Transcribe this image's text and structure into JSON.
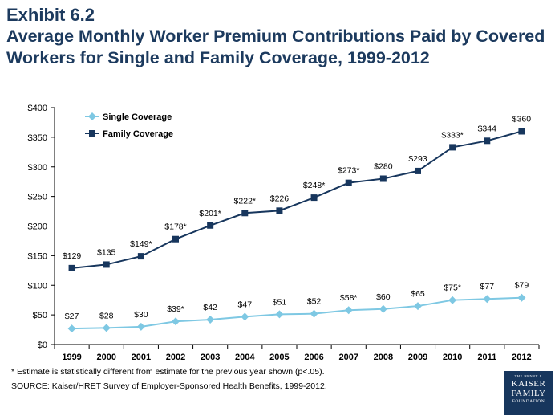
{
  "header": {
    "exhibit": "Exhibit 6.2",
    "title_line1": "Average Monthly Worker Premium Contributions Paid by Covered",
    "title_line2": "Workers for Single and Family Coverage, 1999-2012"
  },
  "footer": {
    "note": "* Estimate is statistically different from estimate for the previous year shown (p<.05).",
    "source": "SOURCE:  Kaiser/HRET Survey of Employer-Sponsored Health Benefits, 1999-2012."
  },
  "logo": {
    "line1": "THE HENRY J.",
    "line2": "KAISER",
    "line3": "FAMILY",
    "line4": "FOUNDATION"
  },
  "chart_data": {
    "type": "line",
    "categories": [
      "1999",
      "2000",
      "2001",
      "2002",
      "2003",
      "2004",
      "2005",
      "2006",
      "2007",
      "2008",
      "2009",
      "2010",
      "2011",
      "2012"
    ],
    "ylim": [
      0,
      400
    ],
    "yticks": [
      0,
      50,
      100,
      150,
      200,
      250,
      300,
      350,
      400
    ],
    "ytick_labels": [
      "$0",
      "$50",
      "$100",
      "$150",
      "$200",
      "$250",
      "$300",
      "$350",
      "$400"
    ],
    "grid": false,
    "legend_position": "top-left",
    "series": [
      {
        "name": "Single Coverage",
        "color": "#7ec8e3",
        "marker": "diamond",
        "values": [
          27,
          28,
          30,
          39,
          42,
          47,
          51,
          52,
          58,
          60,
          65,
          75,
          77,
          79
        ],
        "labels": [
          "$27",
          "$28",
          "$30",
          "$39*",
          "$42",
          "$47",
          "$51",
          "$52",
          "$58*",
          "$60",
          "$65",
          "$75*",
          "$77",
          "$79"
        ]
      },
      {
        "name": "Family Coverage",
        "color": "#17365d",
        "marker": "square",
        "values": [
          129,
          135,
          149,
          178,
          201,
          222,
          226,
          248,
          273,
          280,
          293,
          333,
          344,
          360
        ],
        "labels": [
          "$129",
          "$135",
          "$149*",
          "$178*",
          "$201*",
          "$222*",
          "$226",
          "$248*",
          "$273*",
          "$280",
          "$293",
          "$333*",
          "$344",
          "$360"
        ]
      }
    ]
  }
}
